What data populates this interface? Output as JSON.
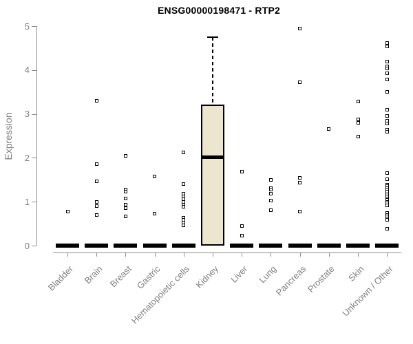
{
  "chart_data": {
    "type": "boxplot",
    "title": "ENSG00000198471 - RTP2",
    "ylabel": "Expression",
    "xlabel": "",
    "ylim": [
      0,
      5
    ],
    "yticks": [
      0,
      1,
      2,
      3,
      4,
      5
    ],
    "grid": false,
    "legend_position": "none",
    "categories": [
      "Bladder",
      "Brain",
      "Breast",
      "Gastric",
      "Hematopoietic cells",
      "Kidney",
      "Liver",
      "Lung",
      "Pancreas",
      "Prostate",
      "Skin",
      "Unknown / Other"
    ],
    "series": [
      {
        "category": "Bladder",
        "box": {
          "whisker_low": 0,
          "q1": 0,
          "median": 0,
          "q3": 0,
          "whisker_high": 0
        },
        "points": [
          0.78
        ]
      },
      {
        "category": "Brain",
        "box": {
          "whisker_low": 0,
          "q1": 0,
          "median": 0,
          "q3": 0,
          "whisker_high": 0
        },
        "points": [
          3.3,
          1.85,
          1.47,
          0.99,
          0.9,
          0.69
        ]
      },
      {
        "category": "Breast",
        "box": {
          "whisker_low": 0,
          "q1": 0,
          "median": 0,
          "q3": 0,
          "whisker_high": 0
        },
        "points": [
          2.04,
          1.28,
          1.23,
          1.08,
          0.93,
          0.85,
          0.66
        ]
      },
      {
        "category": "Gastric",
        "box": {
          "whisker_low": 0,
          "q1": 0,
          "median": 0,
          "q3": 0,
          "whisker_high": 0
        },
        "points": [
          1.57,
          0.73
        ]
      },
      {
        "category": "Hematopoietic cells",
        "box": {
          "whisker_low": 0,
          "q1": 0,
          "median": 0,
          "q3": 0,
          "whisker_high": 0
        },
        "points": [
          2.13,
          1.41,
          1.18,
          1.12,
          1.06,
          1.0,
          0.94,
          0.88,
          0.64,
          0.58,
          0.52,
          0.46
        ]
      },
      {
        "category": "Kidney",
        "box": {
          "whisker_low": 0,
          "q1": 0,
          "median": 2.02,
          "q3": 3.22,
          "whisker_high": 4.75
        },
        "points": []
      },
      {
        "category": "Liver",
        "box": {
          "whisker_low": 0,
          "q1": 0,
          "median": 0,
          "q3": 0,
          "whisker_high": 0
        },
        "points": [
          1.69,
          0.44,
          0.22
        ]
      },
      {
        "category": "Lung",
        "box": {
          "whisker_low": 0,
          "q1": 0,
          "median": 0,
          "q3": 0,
          "whisker_high": 0
        },
        "points": [
          1.5,
          1.31,
          1.27,
          1.19,
          1.02,
          0.8
        ]
      },
      {
        "category": "Pancreas",
        "box": {
          "whisker_low": 0,
          "q1": 0,
          "median": 0,
          "q3": 0,
          "whisker_high": 0
        },
        "points": [
          4.94,
          3.73,
          1.55,
          1.43,
          0.77
        ]
      },
      {
        "category": "Prostate",
        "box": {
          "whisker_low": 0,
          "q1": 0,
          "median": 0,
          "q3": 0,
          "whisker_high": 0
        },
        "points": [
          2.65
        ]
      },
      {
        "category": "Skin",
        "box": {
          "whisker_low": 0,
          "q1": 0,
          "median": 0,
          "q3": 0,
          "whisker_high": 0
        },
        "points": [
          3.29,
          2.88,
          2.79,
          2.48
        ]
      },
      {
        "category": "Unknown / Other",
        "box": {
          "whisker_low": 0,
          "q1": 0,
          "median": 0,
          "q3": 0,
          "whisker_high": 0
        },
        "points": [
          4.61,
          4.53,
          4.2,
          4.08,
          4.03,
          3.93,
          3.78,
          3.5,
          3.09,
          2.96,
          2.84,
          2.78,
          2.64,
          2.6,
          1.66,
          1.52,
          1.39,
          1.35,
          1.31,
          1.27,
          1.23,
          1.16,
          1.12,
          1.08,
          1.04,
          1.0,
          0.96,
          0.92,
          0.74,
          0.7,
          0.66,
          0.62,
          0.58,
          0.39
        ]
      }
    ],
    "colors": {
      "box_fill": "#ECE6CE",
      "box_border": "#000000",
      "median": "#000000",
      "point": "#000000",
      "axis": "#8a8a8a",
      "tick_label": "#7f7f7f",
      "title": "#000000"
    }
  }
}
